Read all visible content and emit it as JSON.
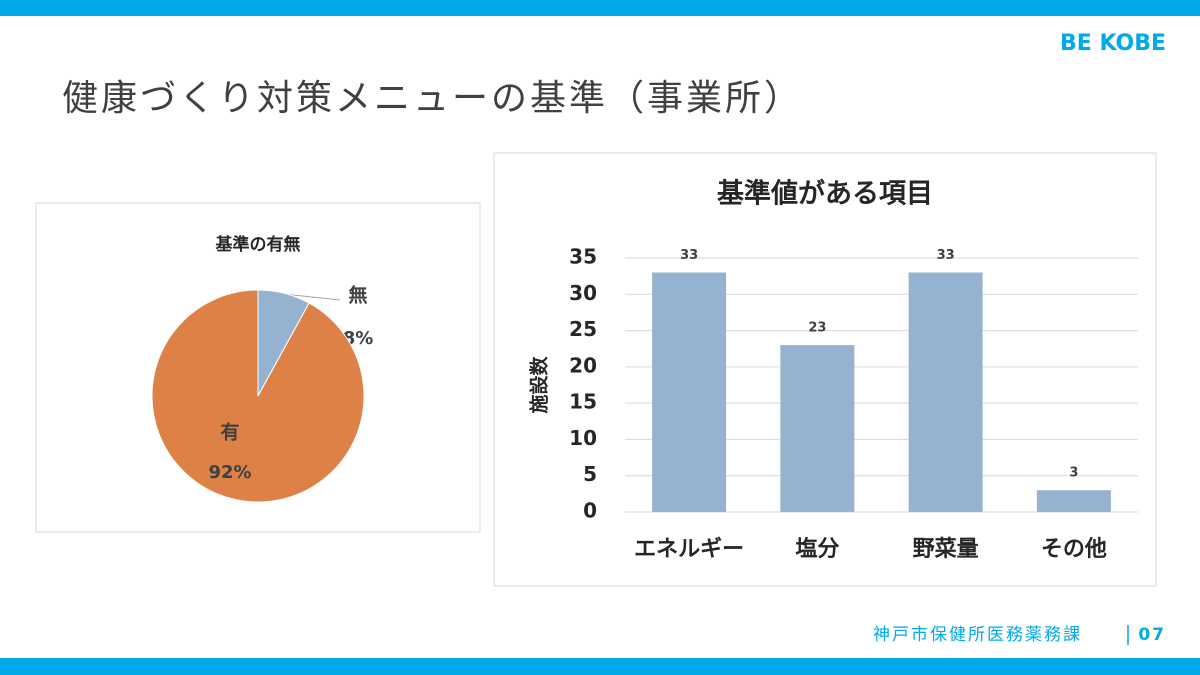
{
  "header": {
    "title": "健康づくり対策メニューの基準（事業所）",
    "logo": "BE KOBE"
  },
  "footer": {
    "department": "神戸市保健所医務薬務課",
    "page": "07"
  },
  "chart_data": [
    {
      "type": "pie",
      "title": "基準の有無",
      "categories": [
        "無",
        "有"
      ],
      "values": [
        8,
        92
      ],
      "value_labels": [
        "8%",
        "92%"
      ],
      "colors": [
        "#95b3d0",
        "#dd8147"
      ]
    },
    {
      "type": "bar",
      "title": "基準値がある項目",
      "y_label": "施設数",
      "categories": [
        "エネルギー",
        "塩分",
        "野菜量",
        "その他"
      ],
      "values": [
        33,
        23,
        33,
        3
      ],
      "color": "#95b3d0",
      "ylim": [
        0,
        35
      ],
      "yticks": [
        0,
        5,
        10,
        15,
        20,
        25,
        30,
        35
      ],
      "grid": true
    }
  ]
}
